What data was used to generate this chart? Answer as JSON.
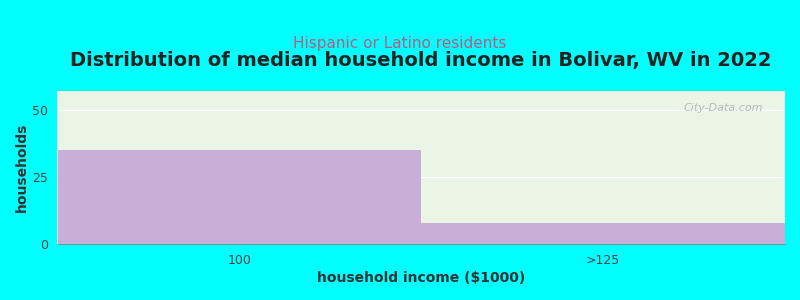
{
  "title": "Distribution of median household income in Bolivar, WV in 2022",
  "subtitle": "Hispanic or Latino residents",
  "categories": [
    "100",
    ">125"
  ],
  "values": [
    35,
    8
  ],
  "bar_color": "#c9aed9",
  "bg_color": "#00FFFF",
  "plot_bg_top": "#eaf5e6",
  "plot_bg_bottom": "#f5faf2",
  "xlabel": "household income ($1000)",
  "ylabel": "households",
  "ylim": [
    0,
    57
  ],
  "yticks": [
    0,
    25,
    50
  ],
  "title_fontsize": 14,
  "subtitle_fontsize": 11,
  "subtitle_color": "#b06080",
  "axis_label_fontsize": 10,
  "tick_fontsize": 9,
  "watermark": "City-Data.com",
  "title_color": "#222222"
}
